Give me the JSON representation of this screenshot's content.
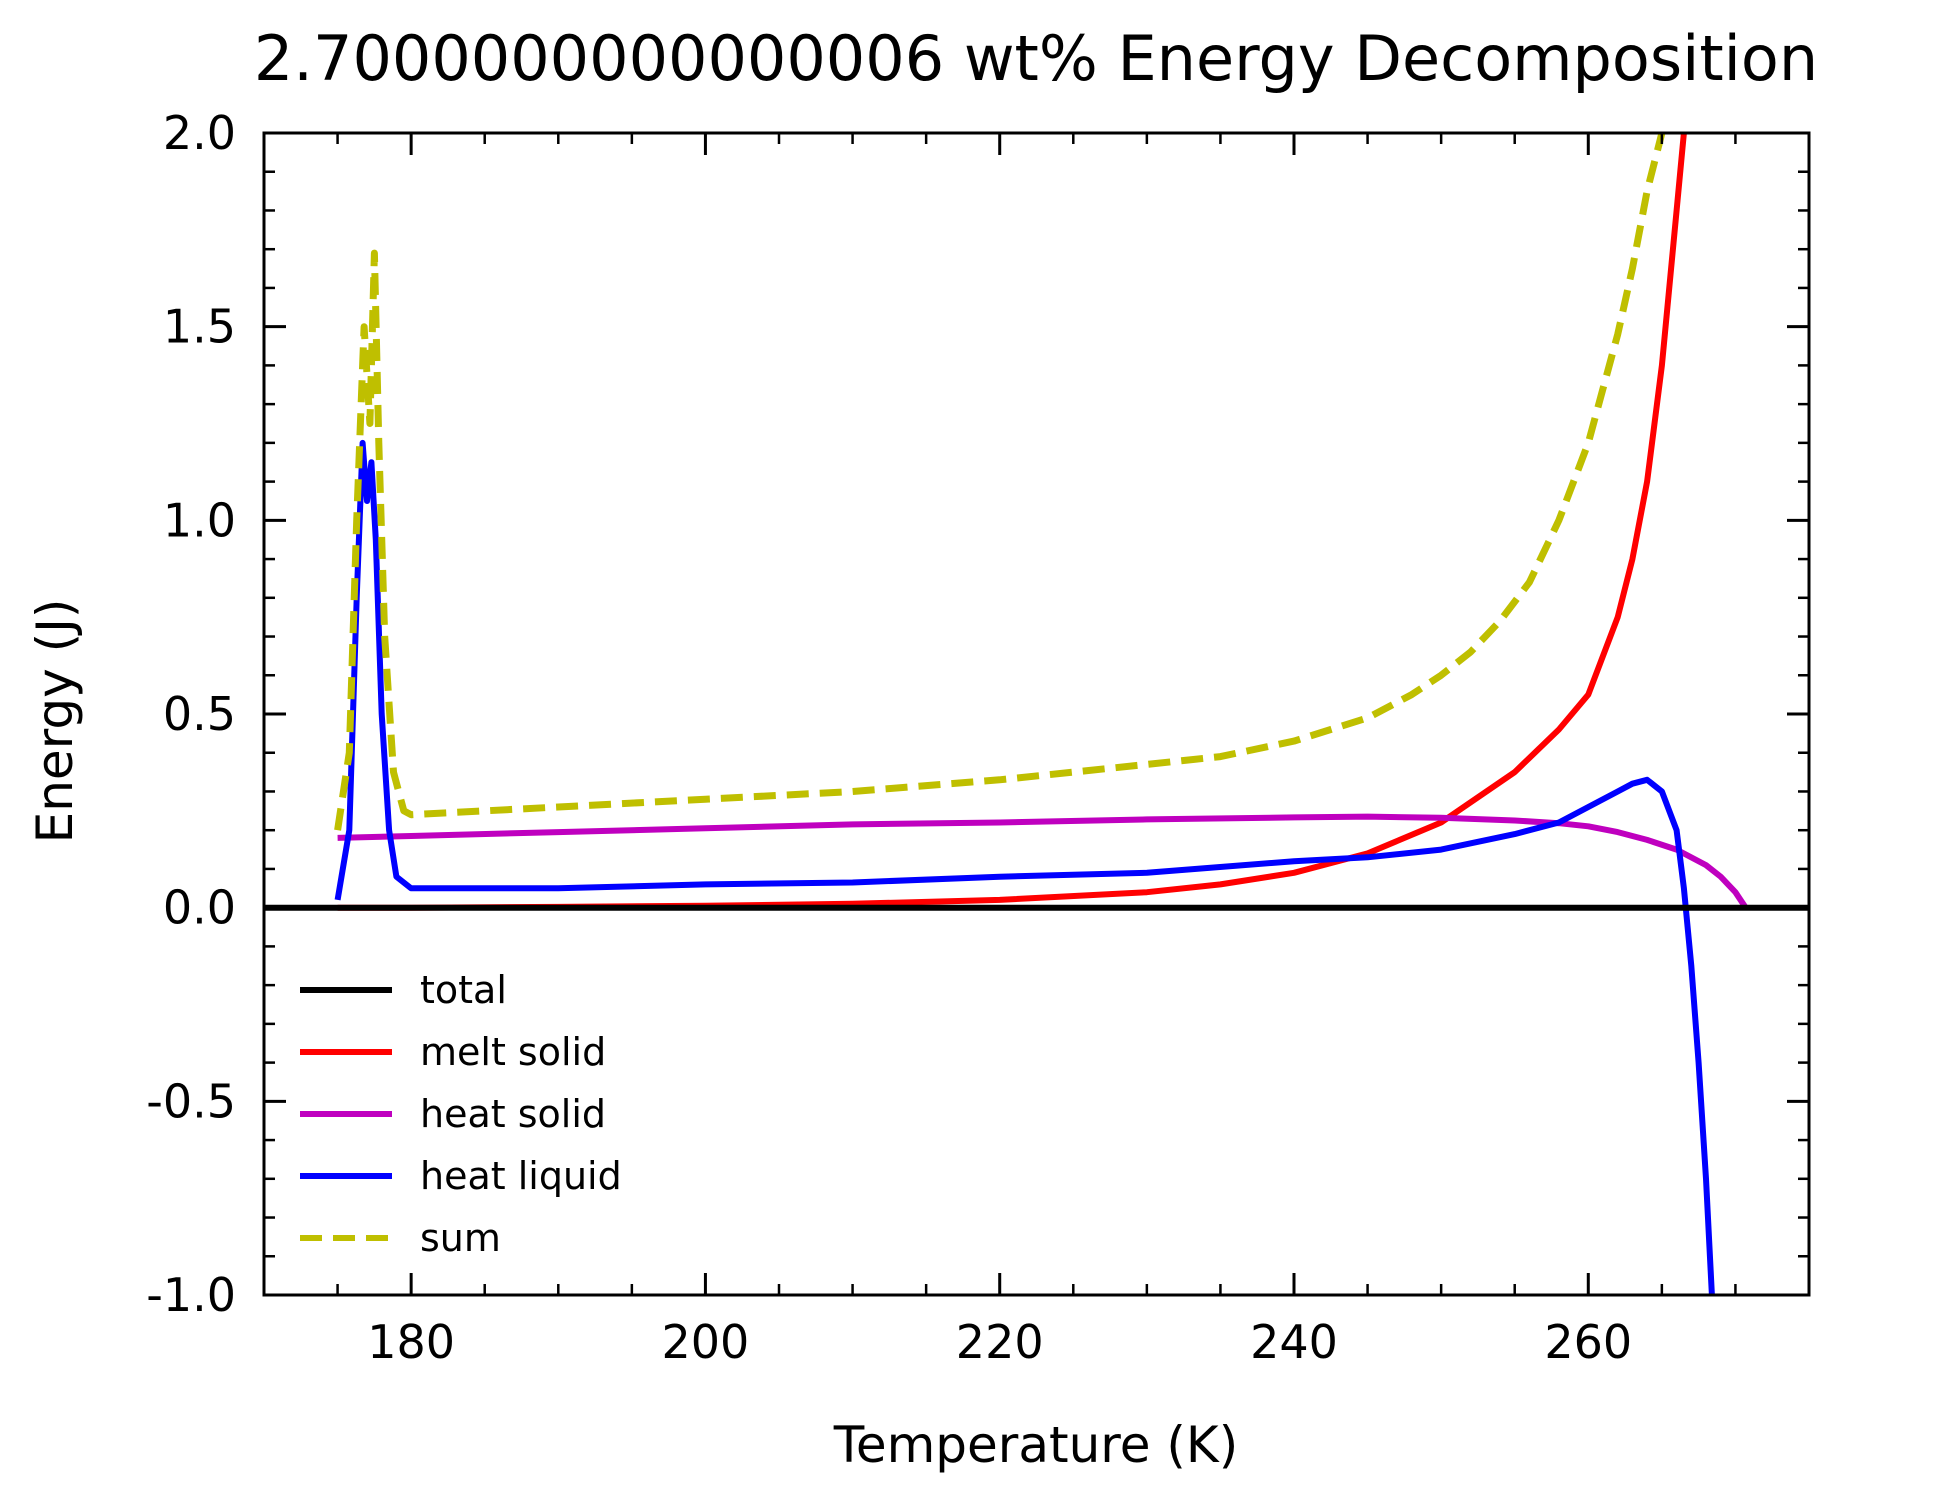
{
  "chart_data": {
    "type": "line",
    "title": "2.7000000000000006 wt% Energy Decomposition",
    "xlabel": "Temperature (K)",
    "ylabel": "Energy (J)",
    "xlim": [
      170,
      275
    ],
    "ylim": [
      -1.0,
      2.0
    ],
    "x_ticks": [
      180,
      200,
      220,
      240,
      260
    ],
    "x_tick_labels": [
      "180",
      "200",
      "220",
      "240",
      "260"
    ],
    "y_ticks": [
      -1.0,
      -0.5,
      0.0,
      0.5,
      1.0,
      1.5,
      2.0
    ],
    "y_tick_labels": [
      "-1.0",
      "-0.5",
      "0.0",
      "0.5",
      "1.0",
      "1.5",
      "2.0"
    ],
    "grid": false,
    "legend_position": "lower-left",
    "series": [
      {
        "name": "total",
        "color": "#000000",
        "style": "solid",
        "x": [
          175,
          270
        ],
        "y": [
          0.0,
          0.0
        ]
      },
      {
        "name": "melt solid",
        "color": "#ff0000",
        "style": "solid",
        "x": [
          175,
          180,
          190,
          200,
          210,
          220,
          230,
          235,
          240,
          245,
          250,
          255,
          258,
          260,
          262,
          263,
          264,
          265,
          266,
          266.5
        ],
        "y": [
          0.0,
          0.0,
          0.002,
          0.005,
          0.01,
          0.02,
          0.04,
          0.06,
          0.09,
          0.14,
          0.22,
          0.35,
          0.46,
          0.55,
          0.75,
          0.9,
          1.1,
          1.4,
          1.8,
          2.0
        ]
      },
      {
        "name": "heat solid",
        "color": "#bf00bf",
        "style": "solid",
        "x": [
          175,
          180,
          190,
          200,
          210,
          220,
          230,
          240,
          245,
          250,
          255,
          258,
          260,
          262,
          264,
          266,
          268,
          269,
          270,
          270.7
        ],
        "y": [
          0.18,
          0.185,
          0.195,
          0.205,
          0.215,
          0.22,
          0.228,
          0.233,
          0.235,
          0.232,
          0.225,
          0.218,
          0.21,
          0.195,
          0.175,
          0.15,
          0.11,
          0.08,
          0.04,
          0.0
        ]
      },
      {
        "name": "heat liquid",
        "color": "#0000ff",
        "style": "solid",
        "x": [
          175,
          175.8,
          176.3,
          176.7,
          177.0,
          177.3,
          177.6,
          178.0,
          178.5,
          179,
          180,
          190,
          200,
          210,
          220,
          230,
          240,
          245,
          250,
          255,
          258,
          260,
          262,
          263,
          264,
          265,
          266,
          266.5,
          267,
          267.5,
          268,
          268.4
        ],
        "y": [
          0.02,
          0.2,
          0.8,
          1.2,
          1.05,
          1.15,
          0.95,
          0.5,
          0.2,
          0.08,
          0.05,
          0.05,
          0.06,
          0.065,
          0.08,
          0.09,
          0.12,
          0.13,
          0.15,
          0.19,
          0.22,
          0.26,
          0.3,
          0.32,
          0.33,
          0.3,
          0.2,
          0.05,
          -0.15,
          -0.4,
          -0.7,
          -1.0
        ]
      },
      {
        "name": "sum",
        "color": "#bfbf00",
        "style": "dashed",
        "x": [
          175,
          175.8,
          176.3,
          176.8,
          177.2,
          177.5,
          177.8,
          178.2,
          178.8,
          179.5,
          180,
          190,
          200,
          210,
          220,
          225,
          230,
          235,
          240,
          245,
          248,
          250,
          252,
          254,
          256,
          258,
          260,
          261,
          262,
          263,
          264,
          265
        ],
        "y": [
          0.2,
          0.4,
          1.0,
          1.5,
          1.25,
          1.69,
          1.2,
          0.7,
          0.35,
          0.25,
          0.24,
          0.26,
          0.28,
          0.3,
          0.33,
          0.35,
          0.37,
          0.39,
          0.43,
          0.49,
          0.55,
          0.6,
          0.66,
          0.74,
          0.84,
          1.0,
          1.2,
          1.34,
          1.48,
          1.65,
          1.85,
          2.0
        ]
      }
    ]
  }
}
